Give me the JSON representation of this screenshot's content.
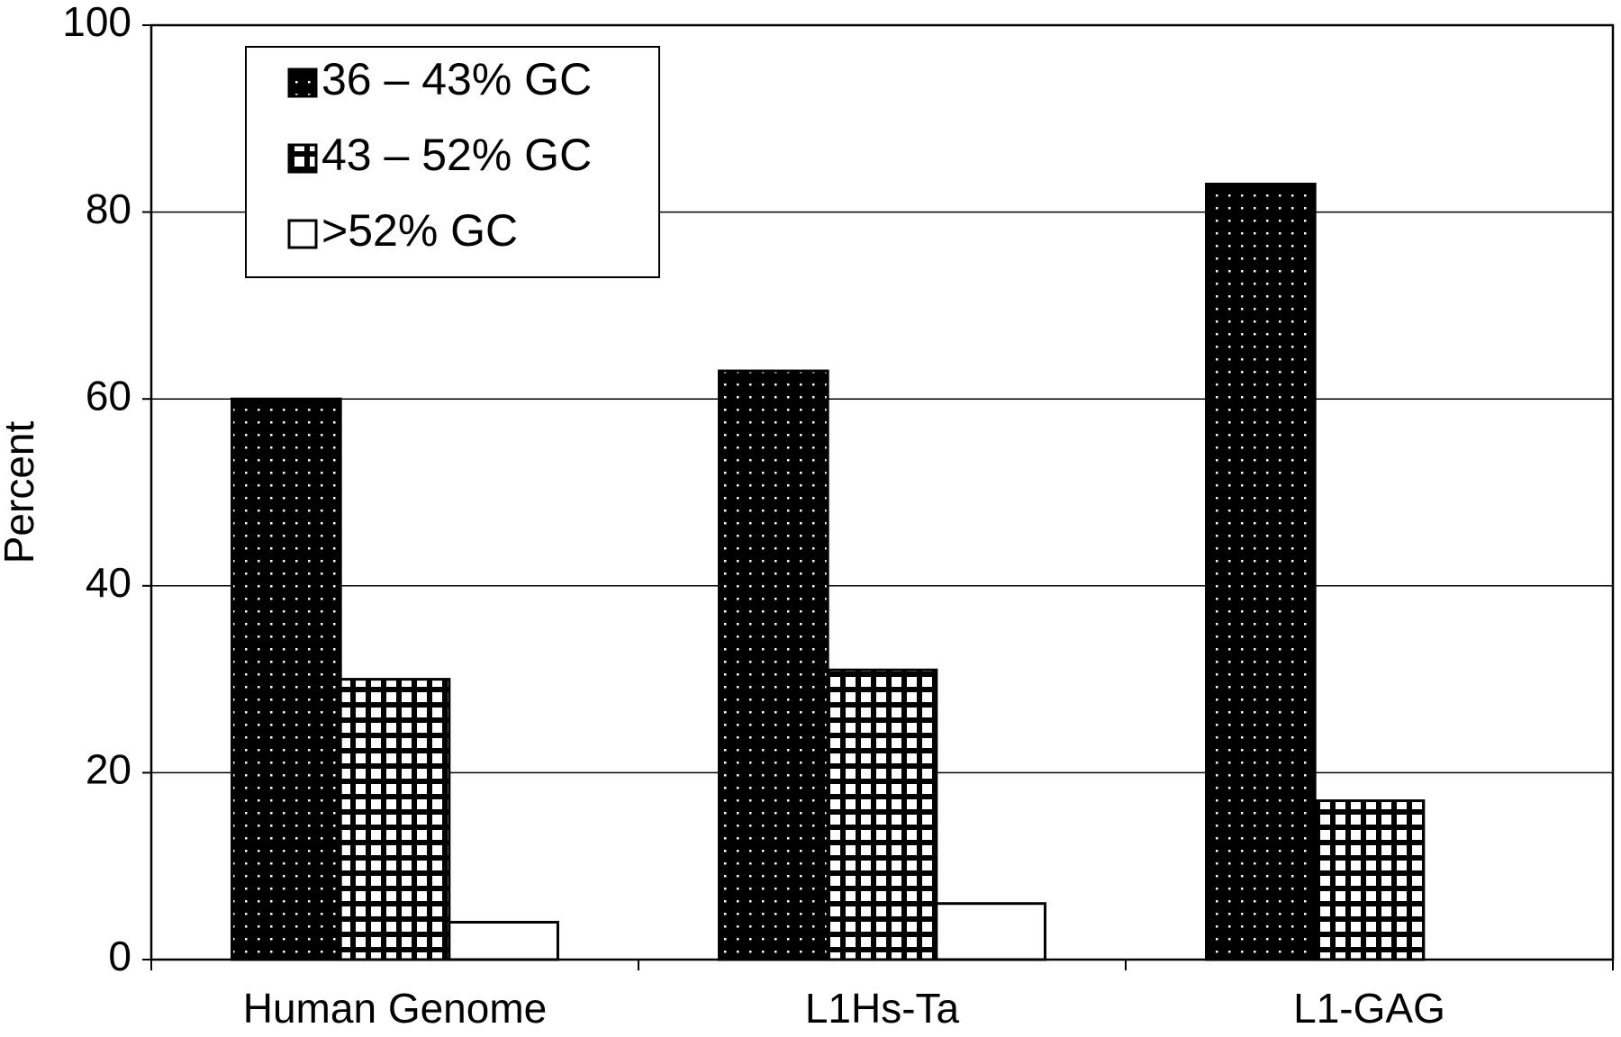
{
  "chart_data": {
    "type": "bar",
    "categories": [
      "Human Genome",
      "L1Hs-Ta",
      "L1-GAG"
    ],
    "series": [
      {
        "name": "36 – 43% GC",
        "color": "#000000",
        "pattern": "dots",
        "values": [
          60,
          63,
          83
        ]
      },
      {
        "name": "43 – 52% GC",
        "color": "#ffffff",
        "pattern": "grid",
        "values": [
          30,
          31,
          17
        ]
      },
      {
        "name": ">52% GC",
        "color": "#ffffff",
        "pattern": "none",
        "values": [
          4,
          6,
          0
        ]
      }
    ],
    "y_label": "Percent",
    "ylim": [
      0,
      100
    ],
    "yticks": [
      0,
      20,
      40,
      60,
      80,
      100
    ],
    "grid": true,
    "legend": "top-left"
  }
}
